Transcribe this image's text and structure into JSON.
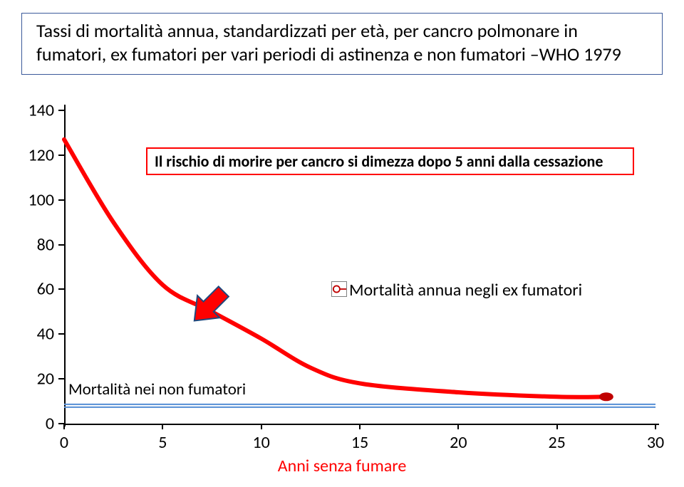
{
  "title_box": {
    "text": "Tassi di mortalità annua, standardizzati per età, per cancro polmonare in fumatori, ex fumatori per vari periodi di astinenza e non fumatori –WHO 1979",
    "fontsize": 26,
    "border_color": "#3b5a9a"
  },
  "chart": {
    "type": "line",
    "background_color": "#ffffff",
    "x_axis": {
      "title": "Anni senza fumare",
      "title_color": "#ff0000",
      "min": 0,
      "max": 30,
      "tick_step": 5,
      "ticks": [
        0,
        5,
        10,
        15,
        20,
        25,
        30
      ],
      "label_fontsize": 24
    },
    "y_axis": {
      "min": 0,
      "max": 140,
      "tick_step": 20,
      "ticks": [
        0,
        20,
        40,
        60,
        80,
        100,
        120,
        140
      ],
      "label_fontsize": 24
    },
    "series": {
      "ex_smokers": {
        "label": "Mortalità annua negli ex fumatori",
        "color": "#ff0000",
        "line_width": 6,
        "marker_color": "#c00000",
        "marker_size": 8,
        "points_x": [
          0,
          2.5,
          5,
          7.5,
          10,
          12.5,
          15,
          20,
          25,
          27.5
        ],
        "points_y": [
          127,
          90,
          62,
          50,
          38,
          25,
          18,
          14,
          12,
          12
        ]
      },
      "non_smokers": {
        "label": "Mortalità nei non fumatori",
        "color": "#558ed5",
        "line_width": 3,
        "y_value": 8,
        "x_start": 0,
        "x_end": 30
      }
    },
    "annotation": {
      "text": "Il rischio di morire per cancro si dimezza dopo 5 anni dalla cessazione",
      "border_color": "#ff0000",
      "fontsize": 22
    },
    "arrow": {
      "fill": "#ff0000",
      "stroke": "#1f497d",
      "target_x": 9,
      "target_y": 40
    },
    "legend_icon": {
      "border_color": "#808080",
      "fill": "#ffffff"
    }
  }
}
